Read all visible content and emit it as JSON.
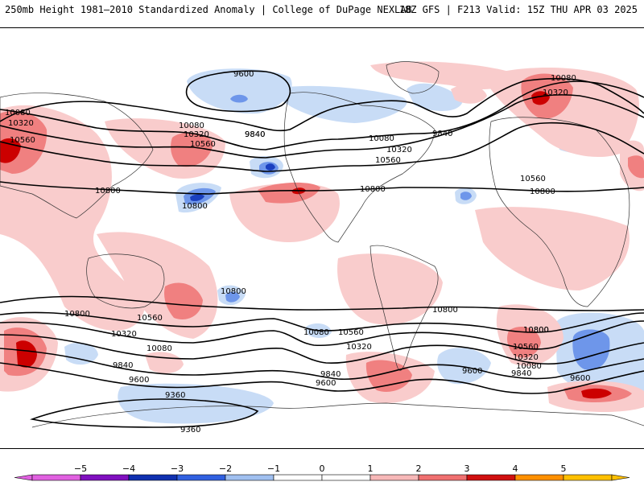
{
  "header": {
    "title": "250mb Height 1981–2010 Standardized Anomaly | College of DuPage NEXLAB",
    "valid": "18Z GFS | F213 Valid: 15Z THU APR 03 2025"
  },
  "colorbar": {
    "ticks": [
      "−5",
      "−4",
      "−3",
      "−2",
      "−1",
      "0",
      "1",
      "2",
      "3",
      "4",
      "5"
    ],
    "colors": [
      "#e060e0",
      "#8010c0",
      "#1030b0",
      "#3060e0",
      "#a0c0f0",
      "#ffffff",
      "#ffffff",
      "#f7b8b8",
      "#f07070",
      "#d01010",
      "#ff9000",
      "#ffc000"
    ]
  },
  "colors": {
    "neg1": "#c8dcf6",
    "neg2": "#6e96ea",
    "neg3": "#1a3fbf",
    "pos1": "#f9cccc",
    "pos2": "#f08080",
    "pos3": "#cc0000",
    "contour": "#000000"
  },
  "contour_labels": [
    "9600",
    "9840",
    "10080",
    "10320",
    "10560",
    "10800",
    "10080",
    "10320",
    "10560",
    "10800",
    "9840",
    "10080",
    "10320",
    "10560",
    "10800",
    "10080",
    "10320",
    "10560",
    "10800",
    "9840",
    "10800",
    "10800",
    "10560",
    "10320",
    "10080",
    "9840",
    "9600",
    "9360",
    "9360",
    "10080",
    "10560",
    "10320",
    "9840",
    "9600",
    "9600",
    "10800",
    "10800",
    "10560",
    "10320",
    "10080",
    "9840",
    "9600",
    "10800"
  ]
}
